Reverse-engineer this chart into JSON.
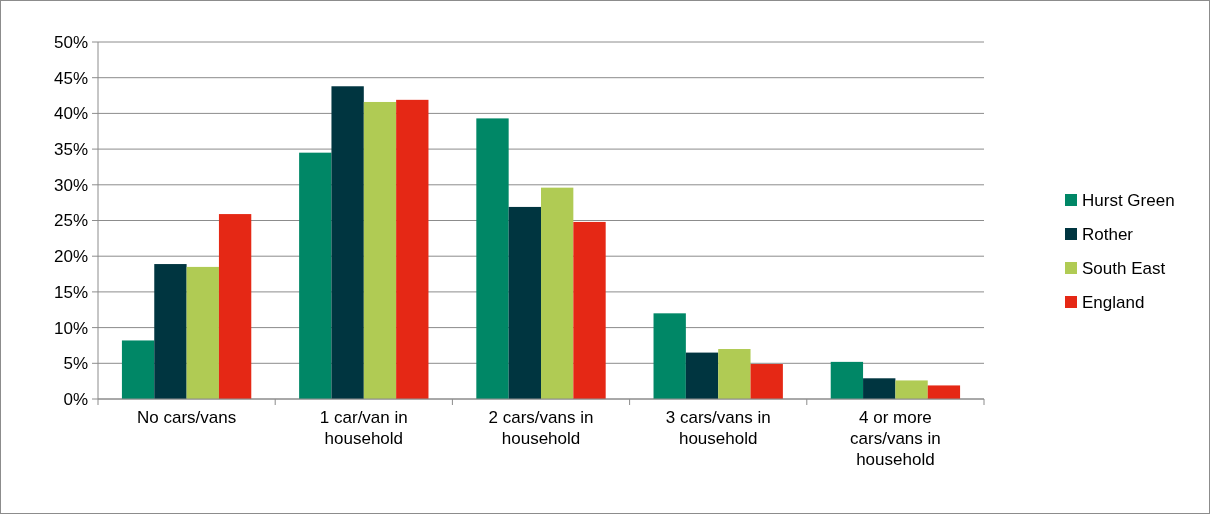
{
  "chart_data": {
    "type": "bar",
    "categories": [
      "No cars/vans",
      "1 car/van in household",
      "2 cars/vans in household",
      "3 cars/vans in household",
      "4 or more cars/vans in household"
    ],
    "series": [
      {
        "name": "Hurst Green",
        "color": "#008766",
        "values": [
          8.2,
          34.5,
          39.3,
          12.0,
          5.2
        ]
      },
      {
        "name": "Rother",
        "color": "#003540",
        "values": [
          18.9,
          43.8,
          26.9,
          6.5,
          2.9
        ]
      },
      {
        "name": "South East",
        "color": "#b0cb54",
        "values": [
          18.5,
          41.6,
          29.6,
          7.0,
          2.6
        ]
      },
      {
        "name": "England",
        "color": "#e52815",
        "values": [
          25.9,
          41.9,
          24.8,
          4.9,
          1.9
        ]
      }
    ],
    "ylim": [
      0,
      50
    ],
    "yticks": [
      {
        "value": 0,
        "label": "0%"
      },
      {
        "value": 5,
        "label": "5%"
      },
      {
        "value": 10,
        "label": "10%"
      },
      {
        "value": 15,
        "label": "15%"
      },
      {
        "value": 20,
        "label": "20%"
      },
      {
        "value": 25,
        "label": "25%"
      },
      {
        "value": 30,
        "label": "30%"
      },
      {
        "value": 35,
        "label": "35%"
      },
      {
        "value": 40,
        "label": "40%"
      },
      {
        "value": 45,
        "label": "45%"
      },
      {
        "value": 50,
        "label": "50%"
      }
    ],
    "grid": "y",
    "legend": "right"
  }
}
